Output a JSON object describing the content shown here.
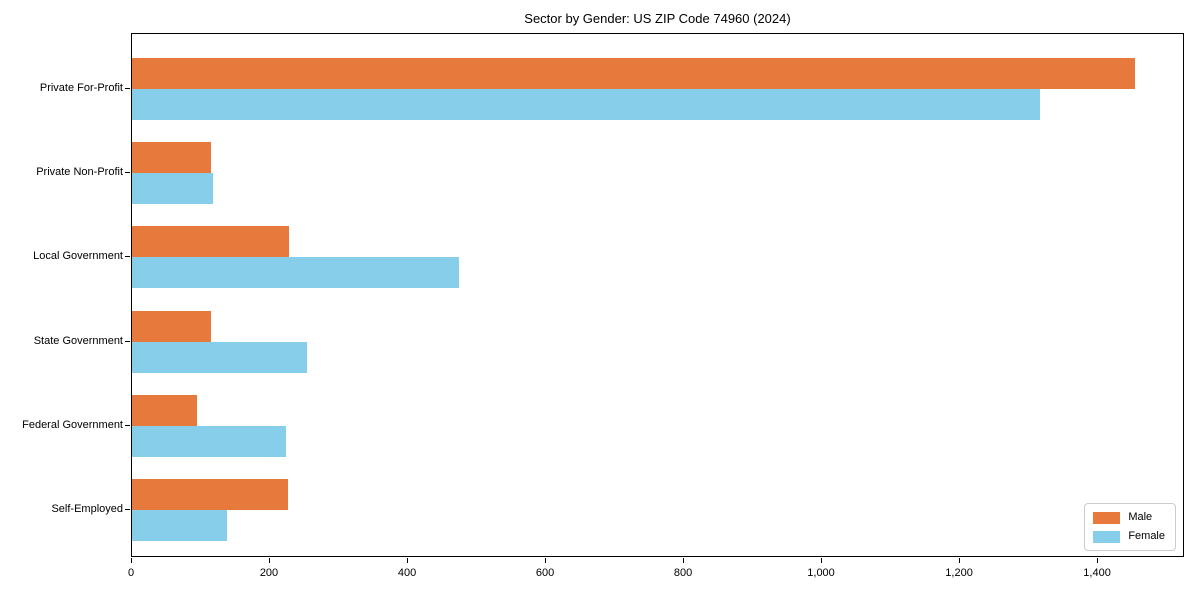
{
  "chart_data": {
    "type": "bar",
    "orientation": "horizontal",
    "title": "Sector by Gender: US ZIP Code 74960 (2024)",
    "categories": [
      "Private For-Profit",
      "Private Non-Profit",
      "Local Government",
      "State Government",
      "Federal Government",
      "Self-Employed"
    ],
    "series": [
      {
        "name": "Male",
        "color": "#E8793C",
        "values": [
          1454,
          114,
          227,
          114,
          94,
          226
        ]
      },
      {
        "name": "Female",
        "color": "#87CEEB",
        "values": [
          1316,
          117,
          474,
          254,
          223,
          137
        ]
      }
    ],
    "xlabel": "",
    "ylabel": "",
    "xlim": [
      0,
      1526
    ],
    "x_ticks": [
      0,
      200,
      400,
      600,
      800,
      1000,
      1200,
      1400
    ],
    "x_tick_labels": [
      "0",
      "200",
      "400",
      "600",
      "800",
      "1,000",
      "1,200",
      "1,400"
    ],
    "grid": false,
    "legend_position": "lower right",
    "spine_color": "#000000"
  }
}
